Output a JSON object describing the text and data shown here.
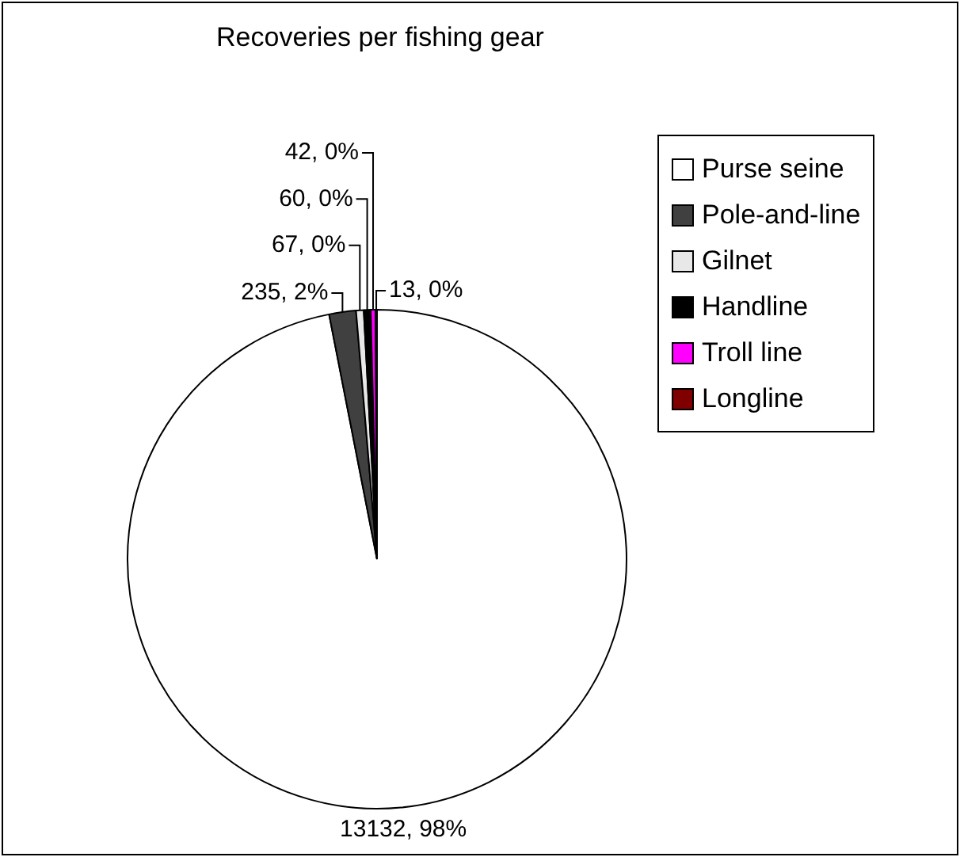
{
  "chart_data": {
    "type": "pie",
    "title": "Recoveries per fishing gear",
    "categories": [
      "Purse seine",
      "Pole-and-line",
      "Gilnet",
      "Handline",
      "Troll line",
      "Longline"
    ],
    "values": [
      13132,
      235,
      67,
      60,
      42,
      13
    ],
    "value_labels": [
      "13132, 98%",
      "235, 2%",
      "67, 0%",
      "60, 0%",
      "42, 0%",
      "13, 0%"
    ],
    "colors": [
      "#ffffff",
      "#404040",
      "#e8e8e8",
      "#000000",
      "#ff00ff",
      "#800000"
    ],
    "legend": "right"
  }
}
